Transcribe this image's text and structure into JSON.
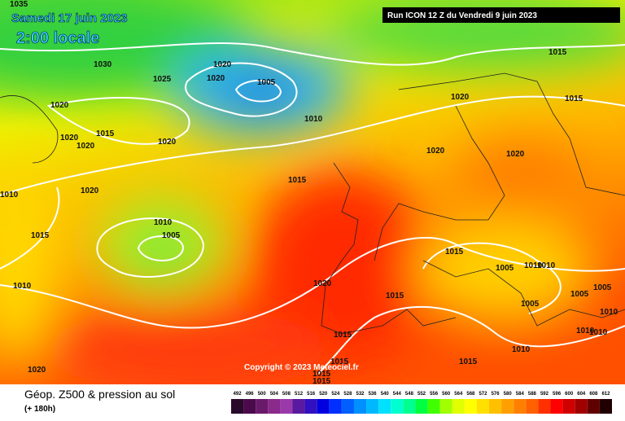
{
  "header": {
    "date": "Samedi 17 juin 2023",
    "time": "2:00 locale",
    "run": "Run ICON 12 Z du Vendredi 9 juin 2023"
  },
  "copyright": "Copyright © 2023 Meteociel.fr",
  "footer": {
    "title": "Géop. Z500 & pression au sol",
    "lead": "(+ 180h)"
  },
  "legend": {
    "values": [
      492,
      496,
      500,
      504,
      508,
      512,
      516,
      520,
      524,
      528,
      532,
      536,
      540,
      544,
      548,
      552,
      556,
      560,
      564,
      568,
      572,
      576,
      580,
      584,
      588,
      592,
      596,
      600,
      604,
      608,
      612
    ],
    "colors": [
      "#2a0a2a",
      "#4b0a4b",
      "#6a1a6a",
      "#8a2a8a",
      "#9a3aaa",
      "#5a1aa0",
      "#3010c0",
      "#0000e0",
      "#0030ff",
      "#0060ff",
      "#0090ff",
      "#00b8ff",
      "#00e0ff",
      "#00ffd0",
      "#00ff90",
      "#00ff40",
      "#40ff00",
      "#a0ff00",
      "#e0ff00",
      "#ffff00",
      "#ffe000",
      "#ffc000",
      "#ffa000",
      "#ff8000",
      "#ff6000",
      "#ff3000",
      "#ff0000",
      "#d00000",
      "#a00000",
      "#600000",
      "#200000"
    ]
  },
  "isobar_labels": [
    1035,
    1030,
    1025,
    1020,
    1020,
    1005,
    1010,
    1020,
    1020,
    1015,
    1020,
    1020,
    1015,
    1015,
    1020,
    1020,
    1020,
    1015,
    1010,
    1020,
    1010,
    1005,
    1015,
    1010,
    1015,
    1005,
    1010,
    1010,
    1020,
    1015,
    1005,
    1005,
    1005,
    1010,
    1010,
    1010,
    1015,
    1010,
    1015,
    1015,
    1015,
    1015,
    1020
  ]
}
